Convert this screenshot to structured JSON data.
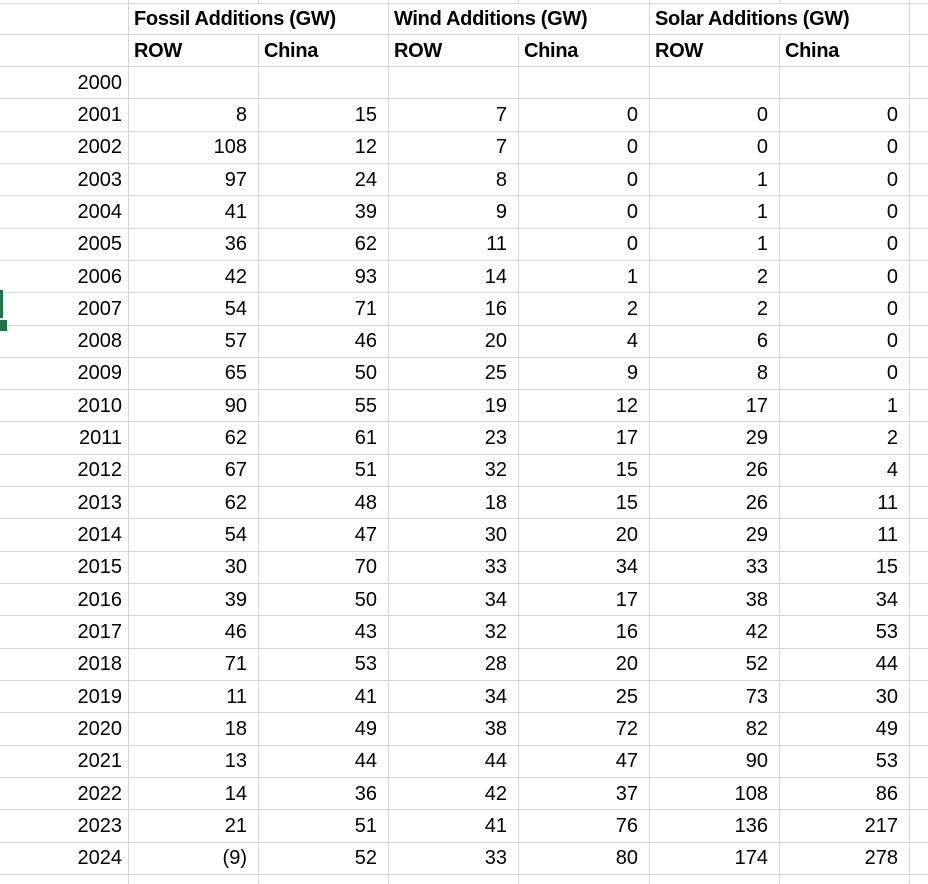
{
  "sheet": {
    "group_headers": [
      {
        "label": "Fossil Additions (GW)"
      },
      {
        "label": "Wind Additions (GW)"
      },
      {
        "label": "Solar Additions (GW)"
      }
    ],
    "subheaders": [
      "ROW",
      "China"
    ],
    "rows": [
      {
        "year": "2000",
        "values": [
          "",
          "",
          "",
          "",
          "",
          ""
        ]
      },
      {
        "year": "2001",
        "values": [
          "8",
          "15",
          "7",
          "0",
          "0",
          "0"
        ]
      },
      {
        "year": "2002",
        "values": [
          "108",
          "12",
          "7",
          "0",
          "0",
          "0"
        ]
      },
      {
        "year": "2003",
        "values": [
          "97",
          "24",
          "8",
          "0",
          "1",
          "0"
        ]
      },
      {
        "year": "2004",
        "values": [
          "41",
          "39",
          "9",
          "0",
          "1",
          "0"
        ]
      },
      {
        "year": "2005",
        "values": [
          "36",
          "62",
          "11",
          "0",
          "1",
          "0"
        ]
      },
      {
        "year": "2006",
        "values": [
          "42",
          "93",
          "14",
          "1",
          "2",
          "0"
        ]
      },
      {
        "year": "2007",
        "values": [
          "54",
          "71",
          "16",
          "2",
          "2",
          "0"
        ]
      },
      {
        "year": "2008",
        "values": [
          "57",
          "46",
          "20",
          "4",
          "6",
          "0"
        ]
      },
      {
        "year": "2009",
        "values": [
          "65",
          "50",
          "25",
          "9",
          "8",
          "0"
        ]
      },
      {
        "year": "2010",
        "values": [
          "90",
          "55",
          "19",
          "12",
          "17",
          "1"
        ]
      },
      {
        "year": "2011",
        "values": [
          "62",
          "61",
          "23",
          "17",
          "29",
          "2"
        ]
      },
      {
        "year": "2012",
        "values": [
          "67",
          "51",
          "32",
          "15",
          "26",
          "4"
        ]
      },
      {
        "year": "2013",
        "values": [
          "62",
          "48",
          "18",
          "15",
          "26",
          "11"
        ]
      },
      {
        "year": "2014",
        "values": [
          "54",
          "47",
          "30",
          "20",
          "29",
          "11"
        ]
      },
      {
        "year": "2015",
        "values": [
          "30",
          "70",
          "33",
          "34",
          "33",
          "15"
        ]
      },
      {
        "year": "2016",
        "values": [
          "39",
          "50",
          "34",
          "17",
          "38",
          "34"
        ]
      },
      {
        "year": "2017",
        "values": [
          "46",
          "43",
          "32",
          "16",
          "42",
          "53"
        ]
      },
      {
        "year": "2018",
        "values": [
          "71",
          "53",
          "28",
          "20",
          "52",
          "44"
        ]
      },
      {
        "year": "2019",
        "values": [
          "11",
          "41",
          "34",
          "25",
          "73",
          "30"
        ]
      },
      {
        "year": "2020",
        "values": [
          "18",
          "49",
          "38",
          "72",
          "82",
          "49"
        ]
      },
      {
        "year": "2021",
        "values": [
          "13",
          "44",
          "44",
          "47",
          "90",
          "53"
        ]
      },
      {
        "year": "2022",
        "values": [
          "14",
          "36",
          "42",
          "37",
          "108",
          "86"
        ]
      },
      {
        "year": "2023",
        "values": [
          "21",
          "51",
          "41",
          "76",
          "136",
          "217"
        ]
      },
      {
        "year": "2024",
        "values": [
          "(9)",
          "52",
          "33",
          "80",
          "174",
          "278"
        ]
      }
    ],
    "colors": {
      "gridline": "#d6d6d6",
      "selection_green": "#217346",
      "text": "#000000",
      "background": "#ffffff"
    }
  }
}
